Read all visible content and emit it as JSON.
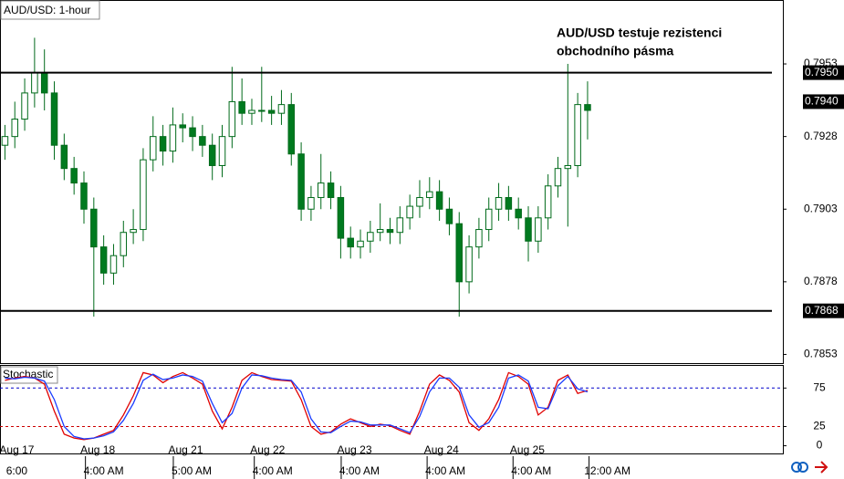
{
  "chart_data": [
    {
      "type": "candlestick",
      "title": "AUD/USD: 1-hour",
      "annotation": [
        "AUD/USD testuje rezistenci",
        "obchodního pásma"
      ],
      "open": [
        0.7925,
        0.7928,
        0.7934,
        0.7943,
        0.795,
        0.7943,
        0.7925,
        0.7917,
        0.7912,
        0.7903,
        0.789,
        0.7881,
        0.7887,
        0.7895,
        0.7896,
        0.792,
        0.7928,
        0.7923,
        0.7932,
        0.7931,
        0.7928,
        0.7925,
        0.7918,
        0.7928,
        0.794,
        0.7936,
        0.7937,
        0.7937,
        0.7936,
        0.7939,
        0.7922,
        0.7903,
        0.7907,
        0.7912,
        0.7907,
        0.7893,
        0.789,
        0.7892,
        0.7895,
        0.7896,
        0.7895,
        0.79,
        0.7904,
        0.7907,
        0.7909,
        0.7903,
        0.7898,
        0.7878,
        0.789,
        0.7896,
        0.7903,
        0.7907,
        0.7903,
        0.79,
        0.7892,
        0.79,
        0.7911,
        0.7917,
        0.7918,
        0.7939
      ],
      "high": [
        0.7932,
        0.794,
        0.7948,
        0.7962,
        0.7958,
        0.7947,
        0.7929,
        0.7921,
        0.7916,
        0.7907,
        0.7894,
        0.7891,
        0.7899,
        0.7903,
        0.7924,
        0.7935,
        0.7932,
        0.7938,
        0.7936,
        0.7935,
        0.7932,
        0.7929,
        0.7932,
        0.7952,
        0.7948,
        0.7941,
        0.7952,
        0.7942,
        0.7944,
        0.7943,
        0.7926,
        0.7911,
        0.7922,
        0.7916,
        0.7911,
        0.7897,
        0.7896,
        0.7899,
        0.7905,
        0.79,
        0.7904,
        0.7908,
        0.7913,
        0.7914,
        0.7913,
        0.7907,
        0.7902,
        0.7894,
        0.79,
        0.7907,
        0.7912,
        0.7911,
        0.7907,
        0.7904,
        0.7904,
        0.7915,
        0.7921,
        0.7953,
        0.7943,
        0.7947
      ],
      "low": [
        0.792,
        0.7924,
        0.793,
        0.7938,
        0.7937,
        0.792,
        0.7913,
        0.7908,
        0.7898,
        0.7866,
        0.7877,
        0.7877,
        0.7883,
        0.7891,
        0.7892,
        0.7916,
        0.7918,
        0.7919,
        0.7926,
        0.7923,
        0.7921,
        0.7913,
        0.7914,
        0.7924,
        0.7932,
        0.7932,
        0.7933,
        0.7932,
        0.7932,
        0.7918,
        0.7899,
        0.7899,
        0.7903,
        0.7903,
        0.7886,
        0.7886,
        0.7886,
        0.7888,
        0.7892,
        0.7891,
        0.7891,
        0.7896,
        0.79,
        0.7903,
        0.7899,
        0.7894,
        0.7866,
        0.7874,
        0.7886,
        0.7892,
        0.7899,
        0.7899,
        0.7896,
        0.7885,
        0.7888,
        0.7896,
        0.7907,
        0.7897,
        0.7914,
        0.7927
      ],
      "close": [
        0.7928,
        0.7934,
        0.7943,
        0.795,
        0.7943,
        0.7925,
        0.7917,
        0.7912,
        0.7903,
        0.789,
        0.7881,
        0.7887,
        0.7895,
        0.7896,
        0.792,
        0.7928,
        0.7923,
        0.7932,
        0.7931,
        0.7928,
        0.7925,
        0.7918,
        0.7928,
        0.794,
        0.7936,
        0.7937,
        0.7937,
        0.7936,
        0.7939,
        0.7922,
        0.7903,
        0.7907,
        0.7912,
        0.7907,
        0.7893,
        0.789,
        0.7892,
        0.7895,
        0.7896,
        0.7895,
        0.79,
        0.7904,
        0.7907,
        0.7909,
        0.7903,
        0.7898,
        0.7878,
        0.789,
        0.7896,
        0.7903,
        0.7907,
        0.7903,
        0.79,
        0.7892,
        0.79,
        0.7911,
        0.7917,
        0.7918,
        0.7939,
        0.7937
      ],
      "up_color": "#ffffff",
      "down_color": "#007a1f",
      "candle_stroke": "#006a1a",
      "xlim": [
        -0.5,
        78.5
      ],
      "ylim": [
        0.785,
        0.7975
      ],
      "yticks": [
        0.7953,
        0.7928,
        0.7903,
        0.7878,
        0.7853
      ],
      "levels": [
        {
          "value": 0.795,
          "label": "0.7950"
        },
        {
          "value": 0.7868,
          "label": "0.7868"
        }
      ],
      "last_price": {
        "value": 0.794,
        "label": "0.7940"
      },
      "xticks": [
        {
          "value": 1.2,
          "label": "Aug 17"
        },
        {
          "value": 9.4,
          "label": "Aug 18"
        },
        {
          "value": 18.3,
          "label": "Aug 21"
        },
        {
          "value": 26.6,
          "label": "Aug 22"
        },
        {
          "value": 35.4,
          "label": "Aug 23"
        },
        {
          "value": 44.2,
          "label": "Aug 24"
        },
        {
          "value": 52.9,
          "label": "Aug 25"
        }
      ],
      "xticks_time": [
        {
          "value": 1.2,
          "label": "6:00"
        },
        {
          "value": 10,
          "label": "4:00 AM"
        },
        {
          "value": 18.9,
          "label": "5:00 AM"
        },
        {
          "value": 27.1,
          "label": "4:00 AM"
        },
        {
          "value": 35.9,
          "label": "4:00 AM"
        },
        {
          "value": 44.6,
          "label": "4:00 AM"
        },
        {
          "value": 53.3,
          "label": "4:00 AM"
        },
        {
          "value": 61,
          "label": "12:00 AM"
        }
      ]
    },
    {
      "type": "line",
      "title": "Stochastic",
      "xlim": [
        -0.5,
        78.5
      ],
      "ylim": [
        -10,
        105
      ],
      "yticks": [
        0,
        25,
        75
      ],
      "levels": [
        {
          "value": 75,
          "color": "#0000cc"
        },
        {
          "value": 25,
          "color": "#cc0000"
        }
      ],
      "series": [
        {
          "color": "#e00000",
          "values": [
            85,
            88,
            90,
            88,
            80,
            45,
            15,
            10,
            8,
            10,
            15,
            20,
            40,
            65,
            95,
            92,
            82,
            90,
            95,
            88,
            80,
            45,
            22,
            50,
            85,
            95,
            90,
            86,
            85,
            84,
            60,
            25,
            15,
            18,
            28,
            35,
            30,
            25,
            28,
            26,
            20,
            15,
            45,
            80,
            92,
            85,
            70,
            30,
            20,
            35,
            60,
            95,
            90,
            80,
            40,
            50,
            85,
            92,
            68,
            72
          ]
        },
        {
          "color": "#1a3cff",
          "values": [
            88,
            87,
            89,
            88,
            84,
            60,
            25,
            12,
            9,
            10,
            13,
            18,
            33,
            55,
            85,
            93,
            86,
            88,
            92,
            90,
            84,
            55,
            30,
            42,
            75,
            92,
            91,
            88,
            86,
            85,
            70,
            35,
            18,
            17,
            25,
            32,
            31,
            27,
            27,
            27,
            22,
            17,
            38,
            70,
            88,
            88,
            76,
            40,
            24,
            30,
            50,
            88,
            92,
            84,
            50,
            48,
            78,
            90,
            74,
            70
          ]
        }
      ]
    }
  ]
}
